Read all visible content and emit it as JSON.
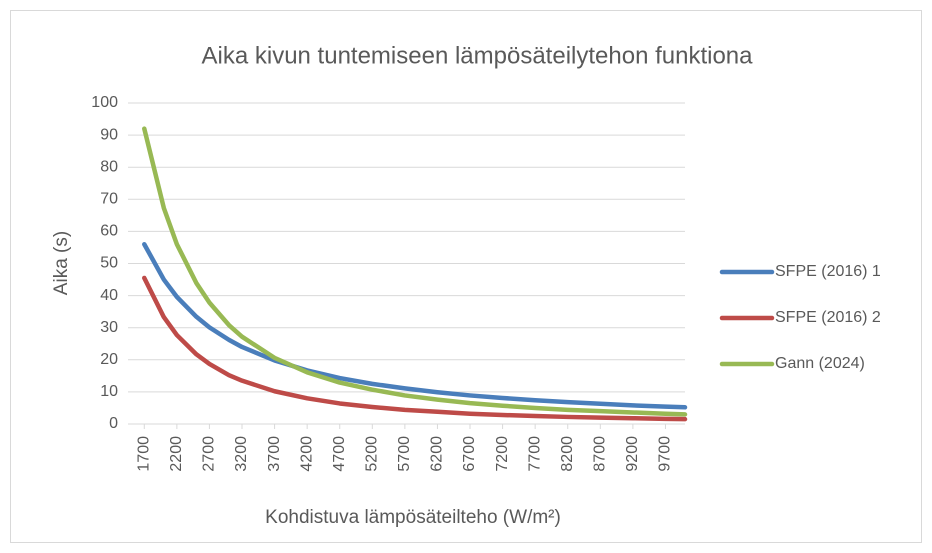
{
  "chart_data": {
    "type": "line",
    "title": "Aika kivun tuntemiseen lämpösäteilytehon funktiona",
    "x_label": "Kohdistuva lämpösäteilteho (W/m²)",
    "y_label": "Aika (s)",
    "x": [
      1700,
      2000,
      2200,
      2500,
      2700,
      3000,
      3200,
      3700,
      4200,
      4700,
      5200,
      5700,
      6200,
      6700,
      7200,
      7700,
      8200,
      8700,
      9200,
      9700,
      10000
    ],
    "series": [
      {
        "name": "SFPE (2016) 1",
        "color": "#4a7ebb",
        "values": [
          56,
          45.0,
          39.6,
          33.4,
          30.1,
          26.2,
          24.0,
          19.8,
          16.7,
          14.3,
          12.5,
          11.1,
          9.9,
          8.9,
          8.1,
          7.4,
          6.8,
          6.3,
          5.8,
          5.4,
          5.2
        ]
      },
      {
        "name": "SFPE (2016) 2",
        "color": "#be4b48",
        "values": [
          45.5,
          33.3,
          27.7,
          21.7,
          18.7,
          15.2,
          13.5,
          10.2,
          8.0,
          6.4,
          5.3,
          4.4,
          3.8,
          3.2,
          2.8,
          2.5,
          2.2,
          2.0,
          1.8,
          1.6,
          1.5
        ]
      },
      {
        "name": "Gann (2024)",
        "color": "#98b954",
        "values": [
          92,
          67.3,
          56.0,
          43.9,
          37.8,
          30.8,
          27.2,
          20.6,
          16.1,
          12.9,
          10.7,
          8.9,
          7.6,
          6.5,
          5.7,
          5.0,
          4.4,
          4.0,
          3.6,
          3.2,
          3.0
        ]
      }
    ],
    "xlim": [
      1450,
      10000
    ],
    "xticks": [
      1700,
      2200,
      2700,
      3200,
      3700,
      4200,
      4700,
      5200,
      5700,
      6200,
      6700,
      7200,
      7700,
      8200,
      8700,
      9200,
      9700
    ],
    "ylim": [
      0,
      100
    ],
    "yticks": [
      0,
      10,
      20,
      30,
      40,
      50,
      60,
      70,
      80,
      90,
      100
    ],
    "grid": true,
    "legend": "right"
  }
}
